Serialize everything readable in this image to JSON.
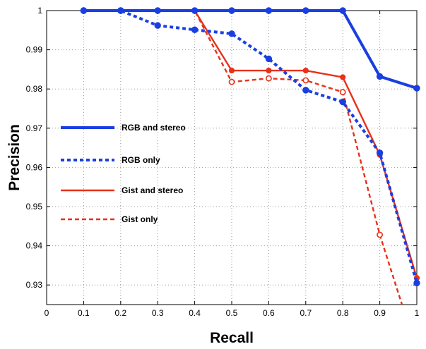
{
  "chart_data": {
    "type": "line",
    "title": "",
    "xlabel": "Recall",
    "ylabel": "Precision",
    "xlim": [
      0,
      1
    ],
    "ylim": [
      0.925,
      1.0
    ],
    "x_ticks": [
      0,
      0.1,
      0.2,
      0.3,
      0.4,
      0.5,
      0.6,
      0.7,
      0.8,
      0.9,
      1
    ],
    "x_tick_labels": [
      "0",
      "0.1",
      "0.2",
      "0.3",
      "0.4",
      "0.5",
      "0.6",
      "0.7",
      "0.8",
      "0.9",
      "1"
    ],
    "y_ticks": [
      0.93,
      0.94,
      0.95,
      0.96,
      0.97,
      0.98,
      0.99,
      1
    ],
    "y_tick_labels": [
      "0.93",
      "0.94",
      "0.95",
      "0.96",
      "0.97",
      "0.98",
      "0.99",
      "1"
    ],
    "grid": true,
    "legend_placement": "left",
    "series": [
      {
        "name": "RGB and stereo",
        "color": "#1a3fe0",
        "style": "solid",
        "marker": "filled",
        "x": [
          0.1,
          0.2,
          0.3,
          0.4,
          0.5,
          0.6,
          0.7,
          0.8,
          0.9,
          1.0
        ],
        "y": [
          1.0,
          1.0,
          1.0,
          1.0,
          1.0,
          1.0,
          1.0,
          1.0,
          0.9832,
          0.9802
        ]
      },
      {
        "name": "RGB only",
        "color": "#1a3fe0",
        "style": "dashed",
        "marker": "filled",
        "x": [
          0.1,
          0.2,
          0.3,
          0.4,
          0.5,
          0.6,
          0.7,
          0.8,
          0.9,
          1.0
        ],
        "y": [
          1.0,
          1.0,
          0.9962,
          0.9951,
          0.9941,
          0.9877,
          0.9797,
          0.9767,
          0.9637,
          0.9305
        ]
      },
      {
        "name": "Gist and stereo",
        "color": "#e8311a",
        "style": "solid",
        "marker": "filled",
        "x": [
          0.1,
          0.2,
          0.3,
          0.4,
          0.5,
          0.6,
          0.7,
          0.8,
          0.9,
          1.0
        ],
        "y": [
          1.0,
          1.0,
          1.0,
          1.0,
          0.9847,
          0.9847,
          0.9847,
          0.983,
          0.9632,
          0.9318
        ]
      },
      {
        "name": "Gist only",
        "color": "#e8311a",
        "style": "dashed",
        "marker": "open",
        "x": [
          0.1,
          0.2,
          0.3,
          0.4,
          0.5,
          0.6,
          0.7,
          0.8,
          0.9,
          0.96
        ],
        "y": [
          1.0,
          1.0,
          1.0,
          1.0,
          0.9818,
          0.9827,
          0.9822,
          0.9792,
          0.9428,
          0.925
        ],
        "marker_count": 9
      }
    ]
  }
}
